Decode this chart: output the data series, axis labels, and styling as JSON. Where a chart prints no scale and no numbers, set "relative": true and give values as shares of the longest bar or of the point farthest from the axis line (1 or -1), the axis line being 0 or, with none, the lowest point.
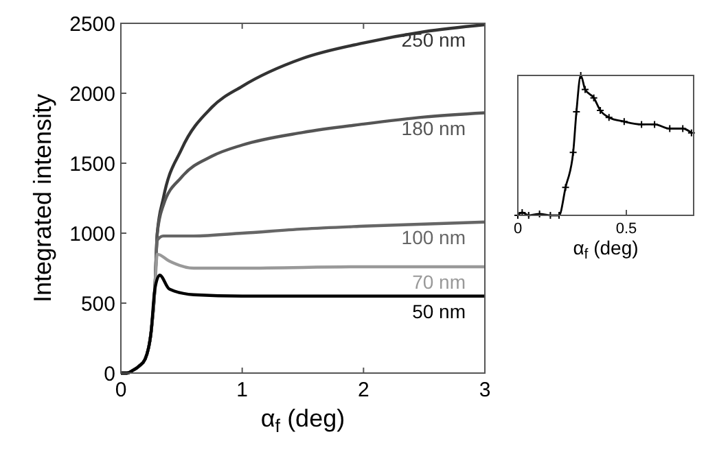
{
  "chart_data": [
    {
      "type": "line",
      "xlabel": "α$_{f}$ (deg)",
      "ylabel": "Integrated intensity",
      "xlim": [
        0,
        3
      ],
      "ylim": [
        0,
        2500
      ],
      "xticks": [
        0,
        1,
        2,
        3
      ],
      "yticks": [
        0,
        500,
        1000,
        1500,
        2000,
        2500
      ],
      "grid": false,
      "legend": false,
      "marker": "none",
      "line_style": "solid",
      "series": [
        {
          "name": "250 nm",
          "color": "#333333",
          "x": [
            0,
            0.05,
            0.1,
            0.15,
            0.2,
            0.25,
            0.28,
            0.3,
            0.35,
            0.5,
            0.75,
            1,
            1.5,
            2,
            2.5,
            3
          ],
          "values": [
            0,
            0,
            20,
            50,
            100,
            300,
            600,
            1000,
            1250,
            1600,
            1900,
            2050,
            2250,
            2360,
            2440,
            2490
          ]
        },
        {
          "name": "180 nm",
          "color": "#555555",
          "x": [
            0,
            0.05,
            0.1,
            0.15,
            0.2,
            0.25,
            0.28,
            0.3,
            0.35,
            0.5,
            0.75,
            1,
            1.5,
            2,
            2.5,
            3
          ],
          "values": [
            0,
            0,
            20,
            50,
            100,
            300,
            600,
            1000,
            1200,
            1400,
            1550,
            1630,
            1720,
            1780,
            1830,
            1860
          ]
        },
        {
          "name": "100 nm",
          "color": "#666666",
          "x": [
            0,
            0.05,
            0.1,
            0.15,
            0.2,
            0.25,
            0.28,
            0.3,
            0.35,
            0.6,
            1,
            1.5,
            2,
            3
          ],
          "values": [
            0,
            0,
            20,
            50,
            100,
            300,
            600,
            950,
            980,
            980,
            1000,
            1030,
            1050,
            1080
          ]
        },
        {
          "name": "70 nm",
          "color": "#999999",
          "x": [
            0,
            0.05,
            0.1,
            0.15,
            0.2,
            0.25,
            0.28,
            0.3,
            0.4,
            0.6,
            1,
            2,
            3
          ],
          "values": [
            0,
            0,
            20,
            50,
            100,
            300,
            600,
            850,
            800,
            750,
            750,
            760,
            760
          ]
        },
        {
          "name": "50 nm",
          "color": "#000000",
          "x": [
            0,
            0.05,
            0.1,
            0.15,
            0.2,
            0.25,
            0.28,
            0.32,
            0.4,
            0.6,
            1,
            2,
            3
          ],
          "values": [
            0,
            0,
            20,
            50,
            100,
            300,
            600,
            700,
            600,
            560,
            550,
            550,
            550
          ]
        }
      ]
    },
    {
      "type": "line",
      "xlabel": "α$_{f}$ (deg)",
      "relative": true,
      "xlim": [
        0,
        0.81
      ],
      "xticks": [
        0,
        0.5
      ],
      "tick_labels": "x",
      "grid": false,
      "legend": false,
      "marker": "cross",
      "line_style": "solid",
      "series": [
        {
          "color": "#000000",
          "x": [
            0,
            0.02,
            0.05,
            0.1,
            0.15,
            0.19,
            0.22,
            0.255,
            0.27,
            0.29,
            0.31,
            0.35,
            0.38,
            0.42,
            0.49,
            0.57,
            0.63,
            0.7,
            0.76,
            0.8
          ],
          "values": [
            0,
            0.02,
            0,
            0.01,
            0,
            0,
            0.2,
            0.45,
            0.74,
            1,
            0.9,
            0.84,
            0.75,
            0.7,
            0.67,
            0.65,
            0.65,
            0.62,
            0.62,
            0.59
          ]
        }
      ]
    }
  ]
}
